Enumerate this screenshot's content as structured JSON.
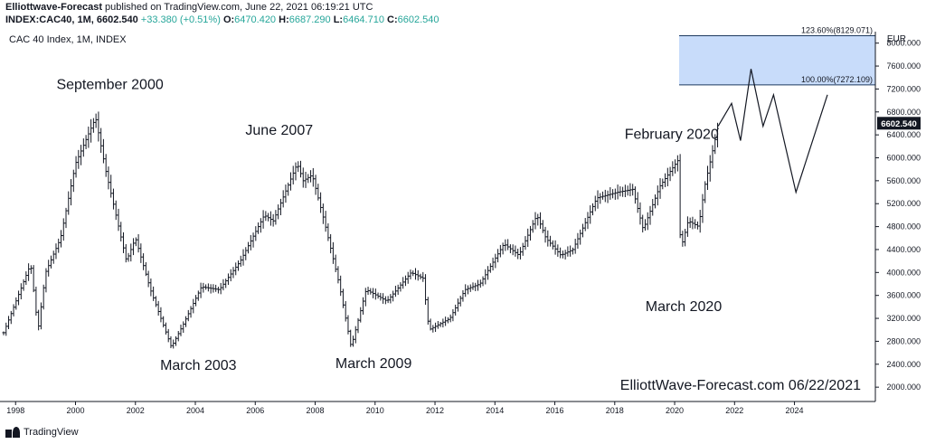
{
  "header": {
    "author": "Elliottwave-Forecast",
    "published": "published on TradingView.com, June 22, 2021 06:19:21 UTC",
    "symbol": "INDEX:CAC40, 1M, 6602.540",
    "change": "+33.380 (+0.51%)",
    "o_label": "O:",
    "o_value": "6470.420",
    "h_label": "H:",
    "h_value": "6687.290",
    "l_label": "L:",
    "l_value": "6464.710",
    "c_label": "C:",
    "c_value": "6602.540"
  },
  "chart_title": "CAC 40 Index, 1M, INDEX",
  "footer": {
    "brand": "TradingView"
  },
  "chart_data": {
    "type": "bar",
    "currency": "EUR",
    "last_price": "6602.540",
    "ylim": [
      1750,
      8200
    ],
    "xlim": [
      1997.6,
      2026.7
    ],
    "y_ticks": [
      "2000.000",
      "2400.000",
      "2800.000",
      "3200.000",
      "3600.000",
      "4000.000",
      "4400.000",
      "4800.000",
      "5200.000",
      "5600.000",
      "6000.000",
      "6400.000",
      "6800.000",
      "7200.000",
      "7600.000",
      "8000.000"
    ],
    "y_tick_values": [
      2000,
      2400,
      2800,
      3200,
      3600,
      4000,
      4400,
      4800,
      5200,
      5600,
      6000,
      6400,
      6800,
      7200,
      7600,
      8000
    ],
    "x_ticks": [
      "1998",
      "2000",
      "2002",
      "2004",
      "2006",
      "2008",
      "2010",
      "2012",
      "2014",
      "2016",
      "2018",
      "2020",
      "2022",
      "2024"
    ],
    "x_tick_values": [
      1998,
      2000,
      2002,
      2004,
      2006,
      2008,
      2010,
      2012,
      2014,
      2016,
      2018,
      2020,
      2022,
      2024
    ],
    "price_anchors": [
      [
        1997.6,
        2950
      ],
      [
        1998.5,
        4150
      ],
      [
        1998.75,
        3000
      ],
      [
        1999.0,
        4000
      ],
      [
        1999.5,
        4600
      ],
      [
        2000.0,
        5900
      ],
      [
        2000.67,
        6700
      ],
      [
        2001.0,
        5800
      ],
      [
        2001.7,
        4200
      ],
      [
        2002.0,
        4600
      ],
      [
        2002.5,
        3700
      ],
      [
        2003.2,
        2700
      ],
      [
        2003.6,
        3100
      ],
      [
        2004.2,
        3750
      ],
      [
        2004.8,
        3700
      ],
      [
        2005.5,
        4200
      ],
      [
        2006.3,
        5000
      ],
      [
        2006.6,
        4900
      ],
      [
        2007.4,
        5900
      ],
      [
        2007.6,
        5600
      ],
      [
        2007.9,
        5700
      ],
      [
        2008.3,
        4900
      ],
      [
        2008.8,
        3800
      ],
      [
        2009.2,
        2700
      ],
      [
        2009.7,
        3700
      ],
      [
        2010.4,
        3500
      ],
      [
        2011.2,
        4000
      ],
      [
        2011.6,
        3900
      ],
      [
        2011.8,
        3000
      ],
      [
        2012.5,
        3200
      ],
      [
        2013.0,
        3700
      ],
      [
        2013.5,
        3800
      ],
      [
        2014.3,
        4500
      ],
      [
        2014.8,
        4300
      ],
      [
        2015.4,
        5000
      ],
      [
        2015.7,
        4600
      ],
      [
        2016.2,
        4300
      ],
      [
        2016.6,
        4400
      ],
      [
        2017.4,
        5300
      ],
      [
        2018.1,
        5400
      ],
      [
        2018.6,
        5450
      ],
      [
        2018.95,
        4750
      ],
      [
        2019.5,
        5500
      ],
      [
        2020.1,
        5950
      ],
      [
        2020.2,
        4400
      ],
      [
        2020.45,
        4900
      ],
      [
        2020.8,
        4800
      ],
      [
        2021.0,
        5500
      ],
      [
        2021.45,
        6550
      ]
    ],
    "projection": [
      [
        2021.45,
        6550
      ],
      [
        2021.9,
        6950
      ],
      [
        2022.2,
        6300
      ],
      [
        2022.55,
        7550
      ],
      [
        2022.95,
        6550
      ],
      [
        2023.3,
        7100
      ],
      [
        2024.05,
        5400
      ],
      [
        2025.1,
        7100
      ]
    ],
    "fib_zone": {
      "x_start": 2020.15,
      "x_end": 2026.7,
      "upper": {
        "value": 8129.071,
        "label": "123.60%(8129.071)"
      },
      "lower": {
        "value": 7272.109,
        "label": "100.00%(7272.109)"
      },
      "color": "#c8dcfa"
    },
    "annotations": [
      {
        "text": "September 2000",
        "x": 2001.15,
        "y": 7200
      },
      {
        "text": "March 2003",
        "x": 2004.1,
        "y": 2300
      },
      {
        "text": "June 2007",
        "x": 2006.8,
        "y": 6400
      },
      {
        "text": "March 2009",
        "x": 2009.95,
        "y": 2330
      },
      {
        "text": "February 2020",
        "x": 2019.9,
        "y": 6330
      },
      {
        "text": "March 2020",
        "x": 2020.3,
        "y": 3330
      }
    ],
    "watermark": "ElliottWave-Forecast.com 06/22/2021",
    "colors": {
      "bars": "#131722",
      "projection": "#131722",
      "axis": "#131722",
      "zone_border": "#1e3a5f"
    }
  }
}
